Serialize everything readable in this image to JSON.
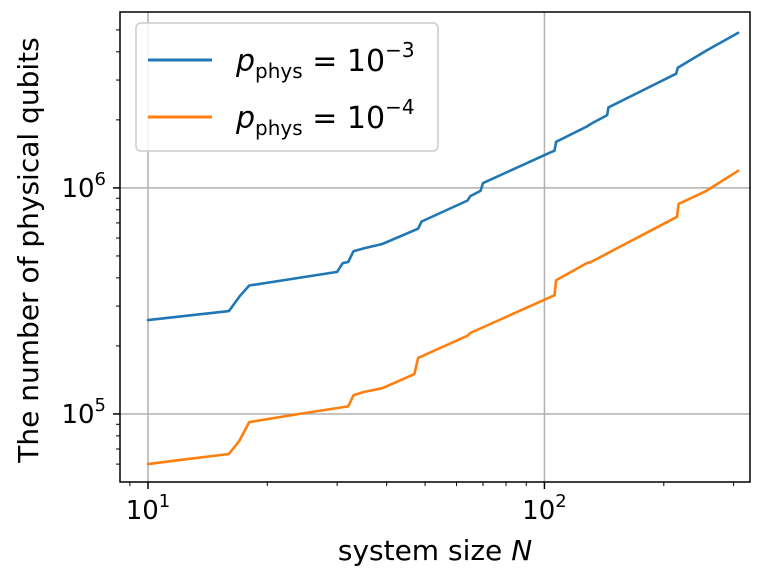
{
  "chart_data": {
    "type": "line",
    "xscale": "log",
    "yscale": "log",
    "xlabel": "system size",
    "xlabel_var": "N",
    "ylabel": "The number of physical qubits",
    "xlim": [
      8.5,
      330
    ],
    "ylim": [
      50000,
      6000000
    ],
    "grid": true,
    "legend_position": "top-left",
    "x_ticks": [
      {
        "base": "10",
        "exp": "1",
        "value": 10
      },
      {
        "base": "10",
        "exp": "2",
        "value": 100
      }
    ],
    "y_ticks": [
      {
        "base": "10",
        "exp": "5",
        "value": 100000
      },
      {
        "base": "10",
        "exp": "6",
        "value": 1000000
      }
    ],
    "series": [
      {
        "name": "p_phys = 10^-3",
        "legend_var": "p",
        "legend_sub": "phys",
        "legend_eq": " = 10",
        "legend_exp": "−3",
        "color": "#1f77b4",
        "points": [
          [
            10,
            260000
          ],
          [
            16,
            285000
          ],
          [
            17,
            330000
          ],
          [
            18,
            370000
          ],
          [
            24,
            400000
          ],
          [
            30,
            425000
          ],
          [
            31,
            465000
          ],
          [
            32,
            470000
          ],
          [
            33,
            525000
          ],
          [
            35,
            540000
          ],
          [
            39,
            565000
          ],
          [
            48,
            660000
          ],
          [
            49,
            710000
          ],
          [
            64,
            880000
          ],
          [
            65,
            920000
          ],
          [
            69,
            970000
          ],
          [
            70,
            1050000
          ],
          [
            103,
            1430000
          ],
          [
            106,
            1460000
          ],
          [
            107,
            1600000
          ],
          [
            128,
            1870000
          ],
          [
            131,
            1920000
          ],
          [
            144,
            2100000
          ],
          [
            145,
            2270000
          ],
          [
            215,
            3200000
          ],
          [
            217,
            3400000
          ],
          [
            256,
            4050000
          ],
          [
            308,
            4850000
          ]
        ]
      },
      {
        "name": "p_phys = 10^-4",
        "legend_var": "p",
        "legend_sub": "phys",
        "legend_eq": " = 10",
        "legend_exp": "−4",
        "color": "#ff7f0e",
        "points": [
          [
            10,
            60000
          ],
          [
            12,
            62500
          ],
          [
            16,
            66500
          ],
          [
            17,
            76000
          ],
          [
            18,
            92000
          ],
          [
            24,
            100000
          ],
          [
            32,
            108000
          ],
          [
            33,
            121000
          ],
          [
            35,
            125000
          ],
          [
            39,
            130000
          ],
          [
            47,
            150000
          ],
          [
            48,
            177000
          ],
          [
            64,
            222000
          ],
          [
            65,
            228000
          ],
          [
            104,
            330000
          ],
          [
            106,
            335000
          ],
          [
            107,
            390000
          ],
          [
            128,
            465000
          ],
          [
            131,
            470000
          ],
          [
            216,
            745000
          ],
          [
            218,
            850000
          ],
          [
            256,
            970000
          ],
          [
            308,
            1190000
          ]
        ]
      }
    ]
  }
}
